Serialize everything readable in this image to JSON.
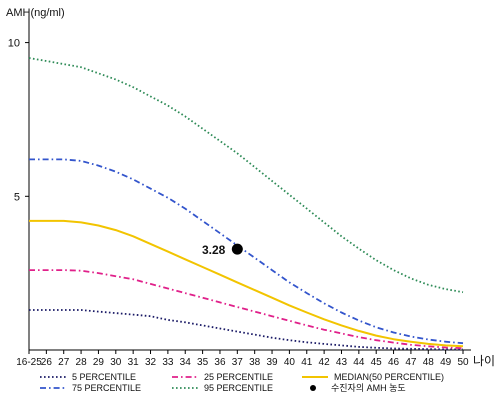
{
  "chart_data": {
    "type": "line",
    "ylabel": "AMH(ng/ml)",
    "xlabel": "나이",
    "ylim": [
      0,
      10.8
    ],
    "ytick_values": [
      5,
      10
    ],
    "ytick_labels": [
      "5",
      "10"
    ],
    "categories": [
      "16-25",
      "26",
      "27",
      "28",
      "29",
      "30",
      "31",
      "32",
      "33",
      "34",
      "35",
      "36",
      "37",
      "38",
      "39",
      "40",
      "41",
      "42",
      "43",
      "44",
      "45",
      "46",
      "47",
      "48",
      "49",
      "50"
    ],
    "series": [
      {
        "name": "5 PERCENTILE",
        "color": "#1a1a66",
        "dash": "dotted",
        "values": [
          1.3,
          1.3,
          1.3,
          1.3,
          1.25,
          1.2,
          1.15,
          1.1,
          0.98,
          0.9,
          0.8,
          0.7,
          0.6,
          0.5,
          0.4,
          0.32,
          0.25,
          0.2,
          0.15,
          0.1,
          0.07,
          0.05,
          0.04,
          0.03,
          0.02,
          0.02
        ]
      },
      {
        "name": "25 PERCENTILE",
        "color": "#e0208a",
        "dash": "dashdot",
        "values": [
          2.6,
          2.6,
          2.6,
          2.58,
          2.5,
          2.4,
          2.3,
          2.15,
          2.0,
          1.85,
          1.7,
          1.55,
          1.4,
          1.25,
          1.1,
          0.95,
          0.8,
          0.66,
          0.54,
          0.42,
          0.32,
          0.24,
          0.17,
          0.12,
          0.08,
          0.06
        ]
      },
      {
        "name": "MEDIAN(50 PERCENTILE)",
        "color": "#f2c400",
        "dash": "solid",
        "values": [
          4.2,
          4.2,
          4.2,
          4.15,
          4.05,
          3.9,
          3.7,
          3.45,
          3.2,
          2.95,
          2.7,
          2.45,
          2.2,
          1.95,
          1.7,
          1.45,
          1.22,
          1.0,
          0.8,
          0.62,
          0.47,
          0.35,
          0.27,
          0.2,
          0.15,
          0.12
        ]
      },
      {
        "name": "75 PERCENTILE",
        "color": "#3355cc",
        "dash": "dashdot",
        "values": [
          6.2,
          6.2,
          6.2,
          6.15,
          6.0,
          5.8,
          5.55,
          5.25,
          4.95,
          4.6,
          4.2,
          3.8,
          3.4,
          3.0,
          2.6,
          2.2,
          1.85,
          1.52,
          1.22,
          0.96,
          0.74,
          0.57,
          0.44,
          0.34,
          0.27,
          0.22
        ]
      },
      {
        "name": "95 PERCENTILE",
        "color": "#2e8b57",
        "dash": "dotted",
        "values": [
          9.5,
          9.4,
          9.3,
          9.2,
          9.0,
          8.8,
          8.55,
          8.25,
          7.95,
          7.6,
          7.2,
          6.8,
          6.4,
          5.95,
          5.5,
          5.05,
          4.6,
          4.15,
          3.7,
          3.3,
          2.92,
          2.6,
          2.33,
          2.12,
          1.98,
          1.88
        ]
      }
    ],
    "marker": {
      "label": "3.28",
      "legend": "수진자의 AMH 농도",
      "x": "37",
      "y": 3.28,
      "color": "#000000"
    },
    "legend_placement": "bottom",
    "grid": false
  }
}
